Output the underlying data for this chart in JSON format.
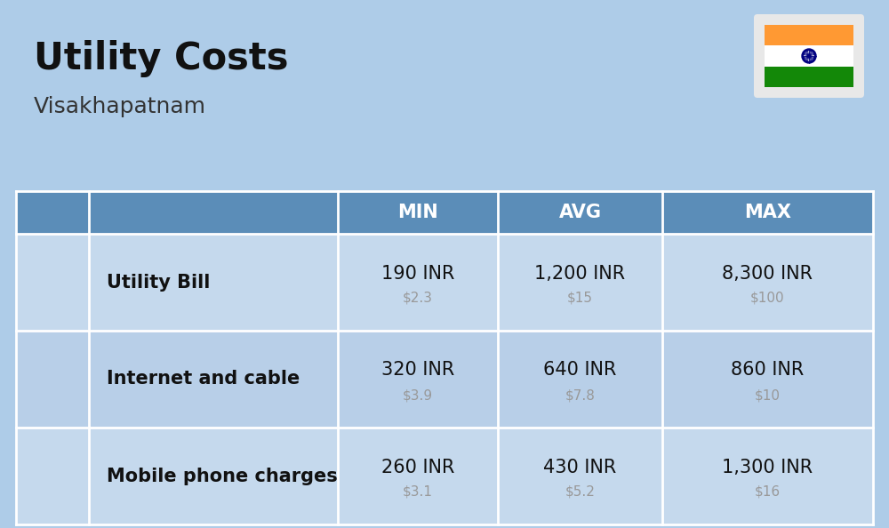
{
  "title": "Utility Costs",
  "subtitle": "Visakhapatnam",
  "background_color": "#aecce8",
  "header_bg_color": "#5b8db8",
  "header_text_color": "#ffffff",
  "row_bg_color_1": "#c5d9ed",
  "row_bg_color_2": "#b8cfe8",
  "rows": [
    {
      "label": "Utility Bill",
      "min_inr": "190 INR",
      "min_usd": "$2.3",
      "avg_inr": "1,200 INR",
      "avg_usd": "$15",
      "max_inr": "8,300 INR",
      "max_usd": "$100",
      "icon": "🛠"
    },
    {
      "label": "Internet and cable",
      "min_inr": "320 INR",
      "min_usd": "$3.9",
      "avg_inr": "640 INR",
      "avg_usd": "$7.8",
      "max_inr": "860 INR",
      "max_usd": "$10",
      "icon": "📡"
    },
    {
      "label": "Mobile phone charges",
      "min_inr": "260 INR",
      "min_usd": "$3.1",
      "avg_inr": "430 INR",
      "avg_usd": "$5.2",
      "max_inr": "1,300 INR",
      "max_usd": "$16",
      "icon": "📱"
    }
  ],
  "title_color": "#111111",
  "subtitle_color": "#333333",
  "label_color": "#111111",
  "value_color": "#111111",
  "usd_color": "#999999",
  "title_fontsize": 30,
  "subtitle_fontsize": 18,
  "label_fontsize": 15,
  "value_fontsize": 15,
  "usd_fontsize": 11,
  "header_fontsize": 15
}
